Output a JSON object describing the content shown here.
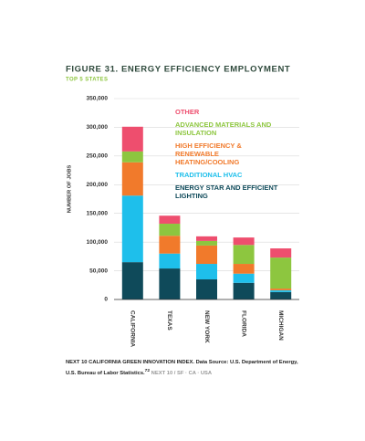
{
  "chart_data": {
    "type": "stacked_bar",
    "title": "FIGURE 31. ENERGY EFFICIENCY EMPLOYMENT",
    "subtitle": "TOP 5 STATES",
    "y_label": "NUMBER OF JOBS",
    "categories": [
      "CALIFORNIA",
      "TEXAS",
      "NEW YORK",
      "FLORIDA",
      "MICHIGAN"
    ],
    "series": [
      {
        "name": "ENERGY STAR AND EFFICIENT LIGHTING",
        "color": "#0f4a5a",
        "values": [
          65000,
          54000,
          35000,
          29000,
          13000
        ]
      },
      {
        "name": "TRADITIONAL HVAC",
        "color": "#1ebfeb",
        "values": [
          116000,
          26000,
          27000,
          16000,
          3000
        ]
      },
      {
        "name": "HIGH EFFICIENCY & RENEWABLE HEATING/COOLING",
        "color": "#f17a2b",
        "values": [
          58000,
          31000,
          32000,
          17000,
          3000
        ]
      },
      {
        "name": "ADVANCED MATERIALS AND INSULATION",
        "color": "#8dc63f",
        "values": [
          19000,
          21000,
          8000,
          33000,
          54000
        ]
      },
      {
        "name": "OTHER",
        "color": "#ee4e6e",
        "values": [
          43000,
          14000,
          8000,
          13000,
          16000
        ]
      }
    ],
    "ylim": [
      0,
      350000
    ],
    "yticks": [
      0,
      {
        "value": 50000,
        "label": "50,000"
      },
      {
        "value": 100000,
        "label": "100,000"
      },
      {
        "value": 150000,
        "label": "150,000"
      },
      {
        "value": 200000,
        "label": "200,000"
      },
      {
        "value": 250000,
        "label": "250,000"
      },
      {
        "value": 300000,
        "label": "300,000"
      },
      {
        "value": 350000,
        "label": "350,000"
      }
    ],
    "grid": true,
    "source": "NEXT 10 CALIFORNIA GREEN INNOVATION INDEX. Data Source: U.S. Department of Energy, U.S. Bureau of Labor Statistics.",
    "footnote": "72",
    "footer": "NEXT 10 / SF · CA · USA"
  }
}
